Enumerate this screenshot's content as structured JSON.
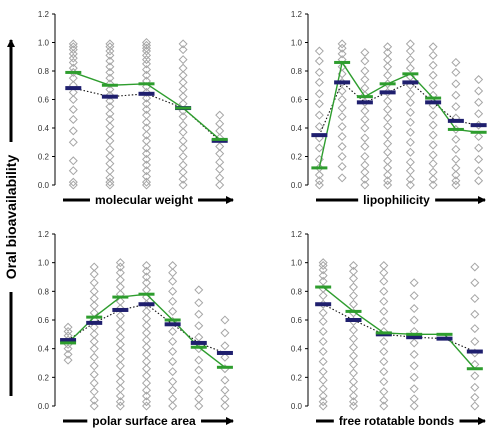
{
  "figure": {
    "ylabel": "Oral bioavailability",
    "colors": {
      "scatter": "#a6a6a6",
      "mean_line": "#2e9d2e",
      "median_marker": "#1f1f6e",
      "axis": "#000000"
    }
  },
  "chart_data": [
    {
      "type": "scatter",
      "xlabel": "molecular weight",
      "ylim": [
        0,
        1.2
      ],
      "yticks": [
        "0.0",
        "0.2",
        "0.4",
        "0.6",
        "0.8",
        "1.0",
        "1.2"
      ],
      "n_groups": 5,
      "green_values": [
        0.79,
        0.7,
        0.71,
        0.54,
        0.32
      ],
      "blue_values": [
        0.68,
        0.62,
        0.64,
        0.54,
        0.31
      ],
      "points": [
        [
          0.0,
          0.02,
          0.1,
          0.17,
          0.3,
          0.38,
          0.46,
          0.53,
          0.6,
          0.65,
          0.7,
          0.75,
          0.79,
          0.82,
          0.86,
          0.89,
          0.92,
          0.95,
          0.97,
          0.99
        ],
        [
          0.0,
          0.02,
          0.05,
          0.1,
          0.15,
          0.2,
          0.25,
          0.31,
          0.36,
          0.41,
          0.46,
          0.5,
          0.55,
          0.59,
          0.63,
          0.67,
          0.71,
          0.75,
          0.79,
          0.83,
          0.87,
          0.91,
          0.94,
          0.97,
          0.99
        ],
        [
          0.0,
          0.02,
          0.06,
          0.1,
          0.14,
          0.18,
          0.22,
          0.26,
          0.31,
          0.35,
          0.4,
          0.44,
          0.49,
          0.53,
          0.57,
          0.61,
          0.65,
          0.69,
          0.73,
          0.77,
          0.81,
          0.85,
          0.88,
          0.91,
          0.94,
          0.96,
          0.98,
          1.0
        ],
        [
          0.0,
          0.04,
          0.09,
          0.14,
          0.2,
          0.26,
          0.31,
          0.37,
          0.42,
          0.48,
          0.52,
          0.57,
          0.62,
          0.67,
          0.72,
          0.77,
          0.82,
          0.88,
          0.95,
          0.99
        ],
        [
          0.0,
          0.05,
          0.11,
          0.16,
          0.22,
          0.27,
          0.33,
          0.38,
          0.43,
          0.49
        ]
      ]
    },
    {
      "type": "scatter",
      "xlabel": "lipophilicity",
      "ylim": [
        0,
        1.2
      ],
      "yticks": [
        "0.0",
        "0.2",
        "0.4",
        "0.6",
        "0.8",
        "1.0",
        "1.2"
      ],
      "n_groups": 8,
      "green_values": [
        0.12,
        0.86,
        0.62,
        0.71,
        0.78,
        0.61,
        0.39,
        0.37
      ],
      "blue_values": [
        0.35,
        0.72,
        0.58,
        0.65,
        0.72,
        0.58,
        0.45,
        0.42
      ],
      "points": [
        [
          0.0,
          0.03,
          0.07,
          0.12,
          0.18,
          0.26,
          0.33,
          0.41,
          0.49,
          0.57,
          0.64,
          0.72,
          0.79,
          0.87,
          0.94
        ],
        [
          0.05,
          0.13,
          0.2,
          0.27,
          0.34,
          0.41,
          0.48,
          0.54,
          0.6,
          0.66,
          0.72,
          0.78,
          0.83,
          0.88,
          0.92,
          0.96,
          0.99
        ],
        [
          0.0,
          0.04,
          0.09,
          0.14,
          0.2,
          0.27,
          0.33,
          0.4,
          0.46,
          0.52,
          0.58,
          0.63,
          0.68,
          0.74,
          0.8,
          0.87,
          0.93
        ],
        [
          0.0,
          0.03,
          0.07,
          0.12,
          0.17,
          0.23,
          0.29,
          0.35,
          0.41,
          0.47,
          0.53,
          0.59,
          0.65,
          0.71,
          0.77,
          0.83,
          0.88,
          0.93,
          0.97
        ],
        [
          0.0,
          0.04,
          0.1,
          0.16,
          0.23,
          0.3,
          0.37,
          0.44,
          0.51,
          0.58,
          0.64,
          0.7,
          0.76,
          0.82,
          0.88,
          0.94,
          0.99
        ],
        [
          0.0,
          0.04,
          0.09,
          0.15,
          0.21,
          0.28,
          0.35,
          0.42,
          0.49,
          0.56,
          0.63,
          0.7,
          0.77,
          0.84,
          0.91,
          0.97
        ],
        [
          0.0,
          0.03,
          0.07,
          0.12,
          0.18,
          0.25,
          0.32,
          0.39,
          0.47,
          0.55,
          0.63,
          0.71,
          0.79,
          0.86
        ],
        [
          0.03,
          0.1,
          0.18,
          0.26,
          0.34,
          0.42,
          0.5,
          0.58,
          0.66,
          0.74
        ]
      ]
    },
    {
      "type": "scatter",
      "xlabel": "polar surface area",
      "ylim": [
        0,
        1.2
      ],
      "yticks": [
        "0.0",
        "0.2",
        "0.4",
        "0.6",
        "0.8",
        "1.0",
        "1.2"
      ],
      "n_groups": 7,
      "green_values": [
        0.44,
        0.62,
        0.76,
        0.78,
        0.6,
        0.41,
        0.27
      ],
      "blue_values": [
        0.46,
        0.58,
        0.67,
        0.71,
        0.57,
        0.44,
        0.37
      ],
      "points": [
        [
          0.32,
          0.36,
          0.4,
          0.43,
          0.46,
          0.49,
          0.52,
          0.55
        ],
        [
          0.0,
          0.04,
          0.1,
          0.16,
          0.22,
          0.28,
          0.34,
          0.4,
          0.45,
          0.5,
          0.55,
          0.6,
          0.65,
          0.7,
          0.75,
          0.8,
          0.86,
          0.92,
          0.97
        ],
        [
          0.0,
          0.03,
          0.07,
          0.12,
          0.17,
          0.22,
          0.28,
          0.33,
          0.38,
          0.43,
          0.48,
          0.53,
          0.58,
          0.63,
          0.68,
          0.73,
          0.78,
          0.83,
          0.88,
          0.93,
          0.97,
          1.0
        ],
        [
          0.0,
          0.03,
          0.07,
          0.11,
          0.16,
          0.21,
          0.26,
          0.31,
          0.36,
          0.41,
          0.46,
          0.51,
          0.56,
          0.61,
          0.66,
          0.71,
          0.76,
          0.81,
          0.86,
          0.9,
          0.94,
          0.98
        ],
        [
          0.0,
          0.05,
          0.11,
          0.17,
          0.24,
          0.31,
          0.38,
          0.45,
          0.52,
          0.59,
          0.66,
          0.73,
          0.8,
          0.87,
          0.93,
          0.98
        ],
        [
          0.0,
          0.05,
          0.11,
          0.18,
          0.25,
          0.32,
          0.4,
          0.48,
          0.56,
          0.64,
          0.72,
          0.81
        ],
        [
          0.0,
          0.05,
          0.11,
          0.18,
          0.26,
          0.34,
          0.42,
          0.51,
          0.6
        ]
      ]
    },
    {
      "type": "scatter",
      "xlabel": "free rotatable bonds",
      "ylim": [
        0,
        1.2
      ],
      "yticks": [
        "0.0",
        "0.2",
        "0.4",
        "0.6",
        "0.8",
        "1.0",
        "1.2"
      ],
      "n_groups": 6,
      "green_values": [
        0.83,
        0.66,
        0.51,
        0.5,
        0.5,
        0.26
      ],
      "blue_values": [
        0.71,
        0.6,
        0.5,
        0.48,
        0.47,
        0.38
      ],
      "points": [
        [
          0.0,
          0.03,
          0.07,
          0.12,
          0.18,
          0.24,
          0.31,
          0.38,
          0.45,
          0.52,
          0.59,
          0.65,
          0.71,
          0.77,
          0.82,
          0.87,
          0.91,
          0.95,
          0.98,
          1.0
        ],
        [
          0.0,
          0.03,
          0.07,
          0.12,
          0.17,
          0.23,
          0.29,
          0.35,
          0.41,
          0.47,
          0.53,
          0.59,
          0.65,
          0.71,
          0.77,
          0.83,
          0.89,
          0.94,
          0.98
        ],
        [
          0.0,
          0.04,
          0.1,
          0.17,
          0.24,
          0.31,
          0.38,
          0.45,
          0.52,
          0.59,
          0.66,
          0.73,
          0.8,
          0.87,
          0.93,
          0.98
        ],
        [
          0.0,
          0.05,
          0.12,
          0.2,
          0.28,
          0.36,
          0.44,
          0.52,
          0.6,
          0.68,
          0.77,
          0.86
        ],
        [],
        [
          0.0,
          0.06,
          0.13,
          0.21,
          0.29,
          0.37,
          0.45,
          0.54,
          0.64,
          0.75,
          0.86,
          0.97
        ]
      ]
    }
  ]
}
